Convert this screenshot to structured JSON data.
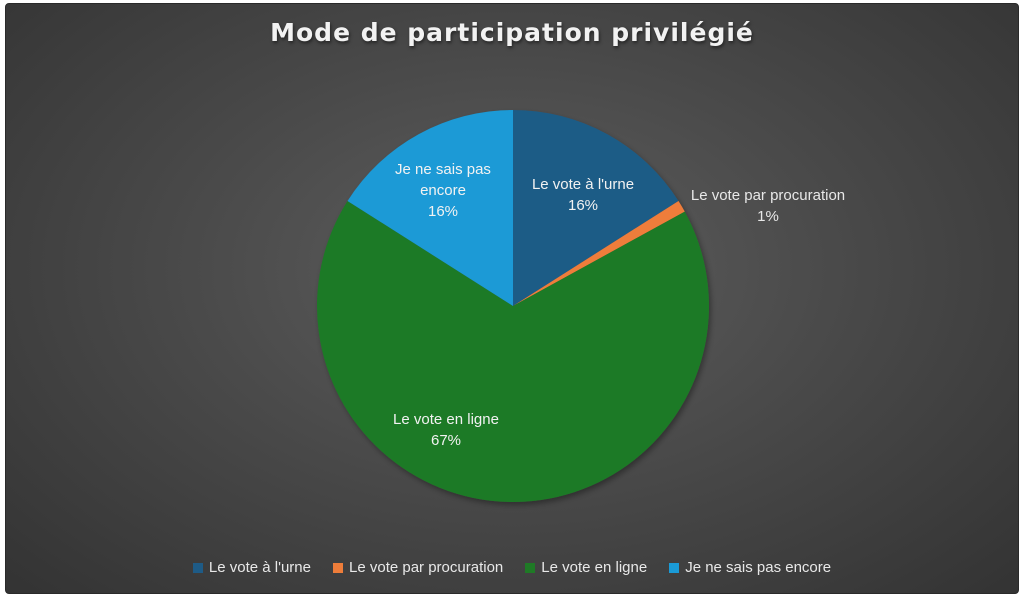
{
  "chart_data": {
    "type": "pie",
    "title": "Mode de participation privilégié",
    "categories": [
      "Le vote à l'urne",
      "Le vote par procuration",
      "Le vote en ligne",
      "Je ne sais pas encore"
    ],
    "values": [
      16,
      1,
      67,
      16
    ],
    "data_labels": [
      [
        "Le vote à l'urne",
        "16%"
      ],
      [
        "Le vote par procuration",
        "1%"
      ],
      [
        "Le vote en ligne",
        "67%"
      ],
      [
        "Je ne sais pas",
        "encore",
        "16%"
      ]
    ],
    "colors": [
      "#1e5b86",
      "#ee7d3a",
      "#1f7a26",
      "#1a9ad6"
    ],
    "legend": "bottom",
    "start_angle_deg": 0,
    "direction": "clockwise"
  }
}
